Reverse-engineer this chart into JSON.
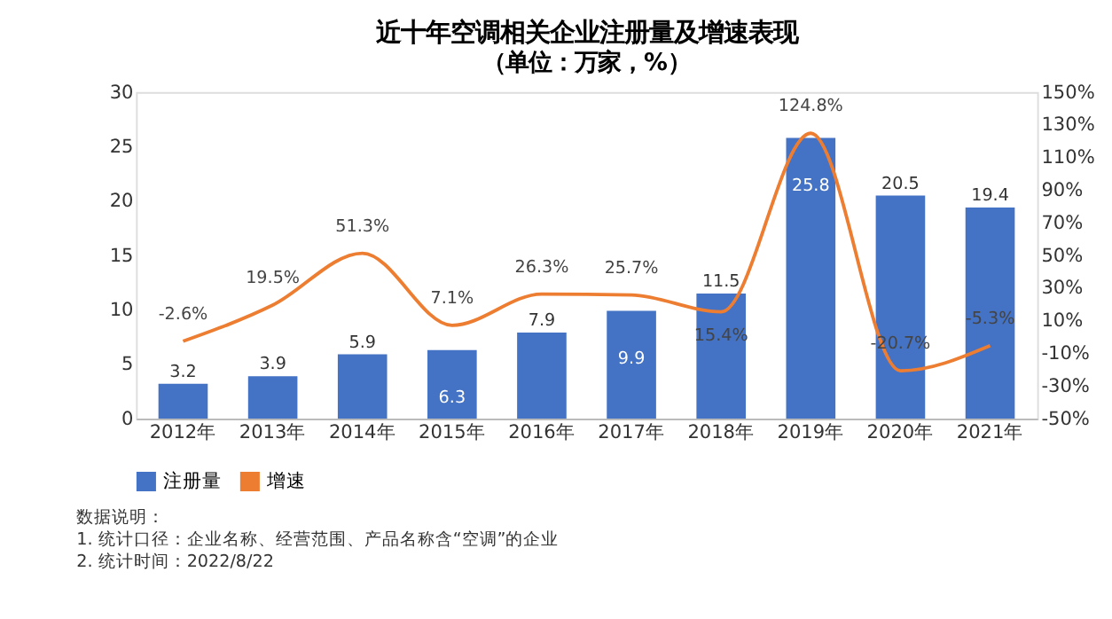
{
  "chart_data": {
    "type": "bar",
    "title": "近十年空调相关企业注册量及增速表现",
    "subtitle": "（单位：万家，%）",
    "categories": [
      "2012年",
      "2013年",
      "2014年",
      "2015年",
      "2016年",
      "2017年",
      "2018年",
      "2019年",
      "2020年",
      "2021年"
    ],
    "series": [
      {
        "name": "注册量",
        "color": "#4472c4",
        "values": [
          3.2,
          3.9,
          5.9,
          6.3,
          7.9,
          9.9,
          11.5,
          25.8,
          20.5,
          19.4
        ],
        "value_labels": [
          "3.2",
          "3.9",
          "5.9",
          "6.3",
          "7.9",
          "9.9",
          "11.5",
          "25.8",
          "20.5",
          "19.4"
        ]
      },
      {
        "name": "增速",
        "type": "line",
        "axis": "y2",
        "color": "#ed7d31",
        "values": [
          -2.6,
          19.5,
          51.3,
          7.1,
          26.3,
          25.7,
          15.4,
          124.8,
          -20.7,
          -5.3
        ],
        "value_labels": [
          "-2.6%",
          "19.5%",
          "51.3%",
          "7.1%",
          "26.3%",
          "25.7%",
          "15.4%",
          "124.8%",
          "-20.7%",
          "-5.3%"
        ]
      }
    ],
    "ylim": [
      0,
      30
    ],
    "yticks": [
      0,
      5,
      10,
      15,
      20,
      25,
      30
    ],
    "y2lim": [
      -50,
      150
    ],
    "y2ticks": [
      {
        "value": -50,
        "label": "-50%"
      },
      {
        "value": -30,
        "label": "-30%"
      },
      {
        "value": -10,
        "label": "-10%"
      },
      {
        "value": 10,
        "label": "10%"
      },
      {
        "value": 30,
        "label": "30%"
      },
      {
        "value": 50,
        "label": "50%"
      },
      {
        "value": 70,
        "label": "70%"
      },
      {
        "value": 90,
        "label": "90%"
      },
      {
        "value": 110,
        "label": "110%"
      },
      {
        "value": 130,
        "label": "130%"
      },
      {
        "value": 150,
        "label": "150%"
      }
    ],
    "grid": false,
    "legend": "bottom",
    "marker": "none",
    "line_style": "solid",
    "annotations": [
      "数据说明：",
      "1. 统计口径：企业名称、经营范围、产品名称含“空调”的企业",
      "2. 统计时间：2022/8/22"
    ]
  }
}
